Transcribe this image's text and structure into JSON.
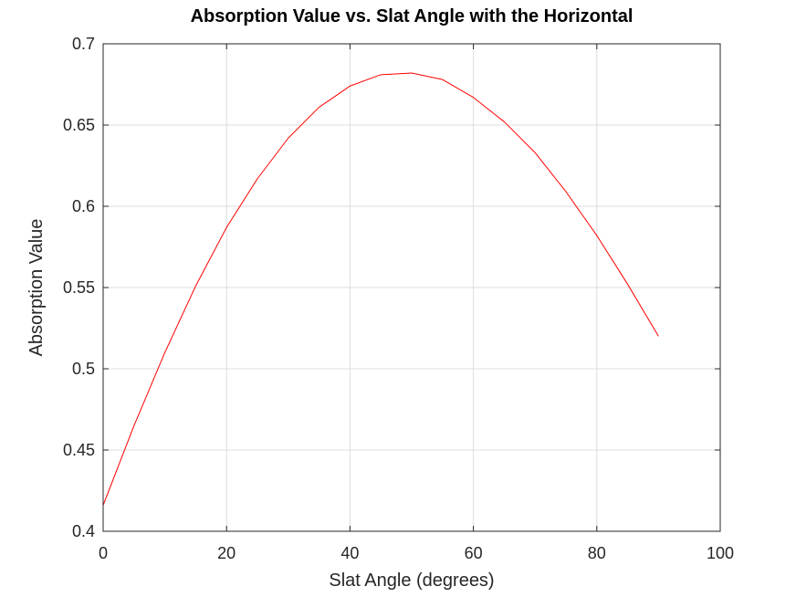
{
  "chart_data": {
    "type": "line",
    "title": "Absorption Value vs. Slat Angle with the Horizontal",
    "xlabel": "Slat Angle (degrees)",
    "ylabel": "Absorption Value",
    "xlim": [
      0,
      100
    ],
    "ylim": [
      0.4,
      0.7
    ],
    "xticks": [
      0,
      20,
      40,
      60,
      80,
      100
    ],
    "xtick_labels": [
      "0",
      "20",
      "40",
      "60",
      "80",
      "100"
    ],
    "yticks": [
      0.4,
      0.45,
      0.5,
      0.55,
      0.6,
      0.65,
      0.7
    ],
    "ytick_labels": [
      "0.4",
      "0.45",
      "0.5",
      "0.55",
      "0.6",
      "0.65",
      "0.7"
    ],
    "grid": true,
    "series": [
      {
        "color": "#ff0000",
        "x": [
          0,
          5,
          10,
          15,
          20,
          25,
          30,
          35,
          40,
          45,
          50,
          55,
          60,
          65,
          70,
          75,
          80,
          85,
          90
        ],
        "y": [
          0.416,
          0.465,
          0.51,
          0.551,
          0.587,
          0.617,
          0.642,
          0.661,
          0.674,
          0.681,
          0.682,
          0.678,
          0.667,
          0.652,
          0.633,
          0.609,
          0.582,
          0.552,
          0.52
        ]
      }
    ]
  }
}
